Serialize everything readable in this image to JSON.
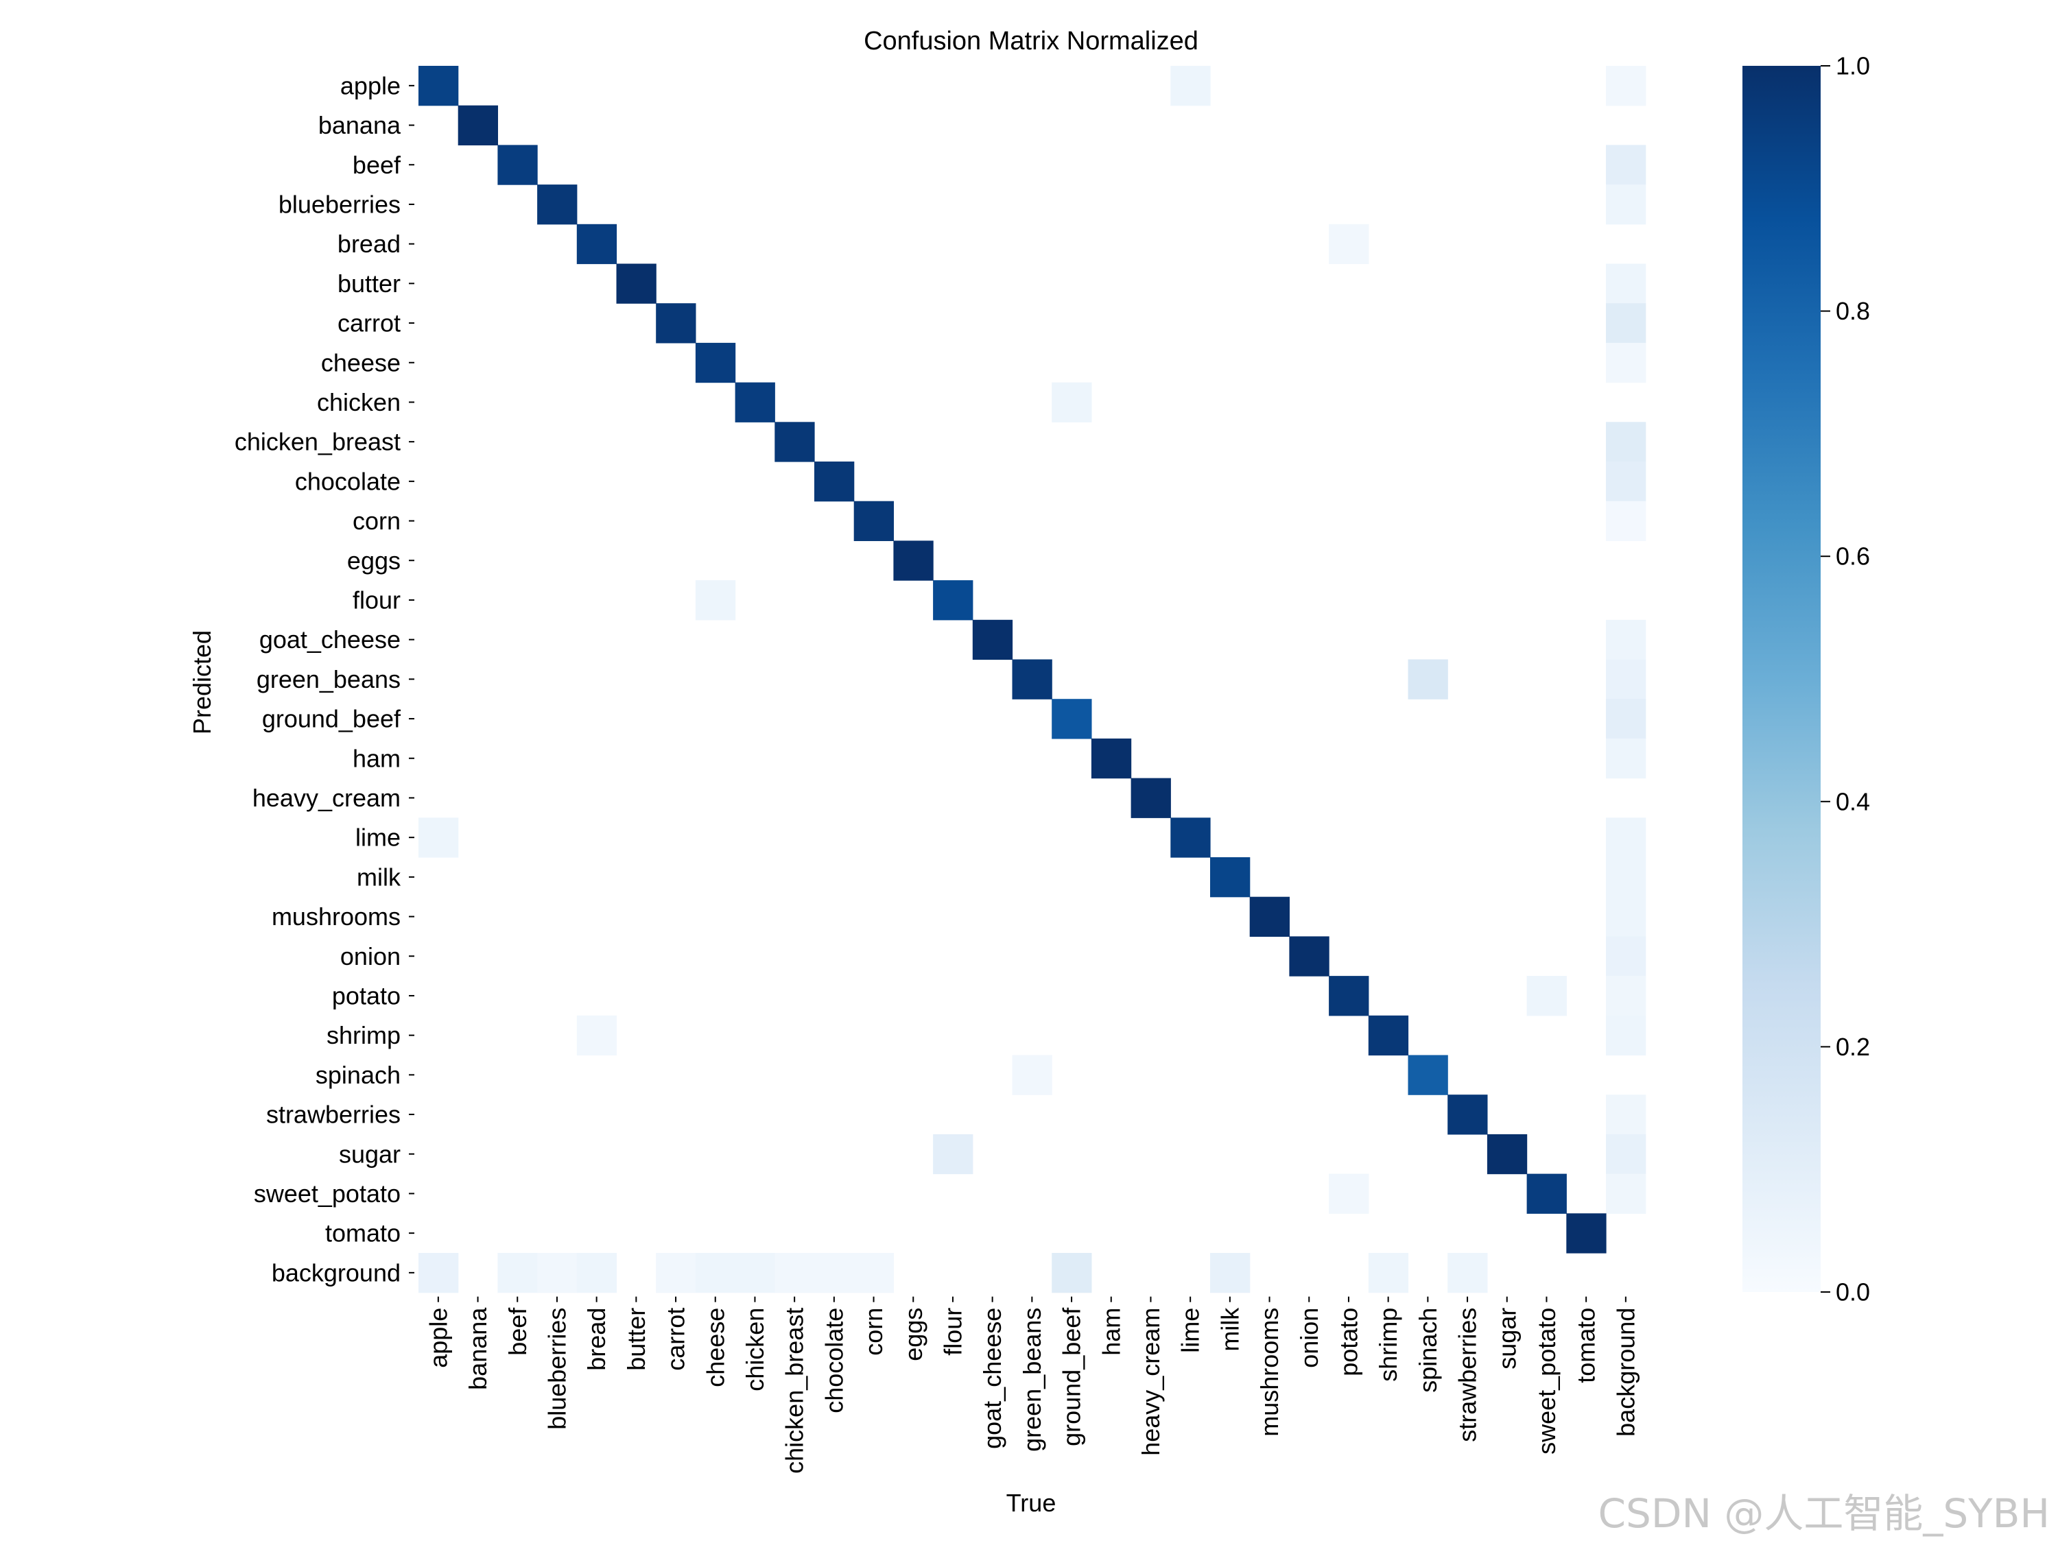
{
  "watermark": "CSDN @人工智能_SYBH",
  "chart_data": {
    "type": "heatmap",
    "title": "Confusion Matrix Normalized",
    "xlabel": "True",
    "ylabel": "Predicted",
    "row_labels": [
      "apple",
      "banana",
      "beef",
      "blueberries",
      "bread",
      "butter",
      "carrot",
      "cheese",
      "chicken",
      "chicken_breast",
      "chocolate",
      "corn",
      "eggs",
      "flour",
      "goat_cheese",
      "green_beans",
      "ground_beef",
      "ham",
      "heavy_cream",
      "lime",
      "milk",
      "mushrooms",
      "onion",
      "potato",
      "shrimp",
      "spinach",
      "strawberries",
      "sugar",
      "sweet_potato",
      "tomato",
      "background"
    ],
    "col_labels": [
      "apple",
      "banana",
      "beef",
      "blueberries",
      "bread",
      "butter",
      "carrot",
      "cheese",
      "chicken",
      "chicken_breast",
      "chocolate",
      "corn",
      "eggs",
      "flour",
      "goat_cheese",
      "green_beans",
      "ground_beef",
      "ham",
      "heavy_cream",
      "lime",
      "milk",
      "mushrooms",
      "onion",
      "potato",
      "shrimp",
      "spinach",
      "strawberries",
      "sugar",
      "sweet_potato",
      "tomato",
      "background"
    ],
    "diagonal": [
      0.93,
      1.0,
      0.95,
      0.97,
      0.95,
      1.0,
      0.97,
      0.95,
      0.95,
      0.97,
      0.97,
      0.97,
      1.0,
      0.9,
      1.0,
      0.97,
      0.85,
      1.0,
      1.0,
      0.95,
      0.92,
      1.0,
      1.0,
      0.97,
      0.97,
      0.82,
      0.97,
      1.0,
      0.95,
      1.0
    ],
    "off_diagonal": [
      {
        "row": "apple",
        "col": "lime",
        "value": 0.05
      },
      {
        "row": "bread",
        "col": "potato",
        "value": 0.03
      },
      {
        "row": "chicken",
        "col": "ground_beef",
        "value": 0.05
      },
      {
        "row": "flour",
        "col": "cheese",
        "value": 0.05
      },
      {
        "row": "green_beans",
        "col": "spinach",
        "value": 0.15
      },
      {
        "row": "lime",
        "col": "apple",
        "value": 0.05
      },
      {
        "row": "potato",
        "col": "sweet_potato",
        "value": 0.05
      },
      {
        "row": "shrimp",
        "col": "bread",
        "value": 0.03
      },
      {
        "row": "spinach",
        "col": "green_beans",
        "value": 0.03
      },
      {
        "row": "sugar",
        "col": "flour",
        "value": 0.1
      },
      {
        "row": "sweet_potato",
        "col": "potato",
        "value": 0.03
      },
      {
        "row": "background",
        "col": "apple",
        "value": 0.07
      },
      {
        "row": "background",
        "col": "beef",
        "value": 0.05
      },
      {
        "row": "background",
        "col": "blueberries",
        "value": 0.03
      },
      {
        "row": "background",
        "col": "bread",
        "value": 0.05
      },
      {
        "row": "background",
        "col": "carrot",
        "value": 0.03
      },
      {
        "row": "background",
        "col": "cheese",
        "value": 0.05
      },
      {
        "row": "background",
        "col": "chicken",
        "value": 0.05
      },
      {
        "row": "background",
        "col": "chicken_breast",
        "value": 0.03
      },
      {
        "row": "background",
        "col": "chocolate",
        "value": 0.03
      },
      {
        "row": "background",
        "col": "corn",
        "value": 0.03
      },
      {
        "row": "background",
        "col": "ground_beef",
        "value": 0.12
      },
      {
        "row": "background",
        "col": "milk",
        "value": 0.08
      },
      {
        "row": "background",
        "col": "shrimp",
        "value": 0.05
      },
      {
        "row": "background",
        "col": "strawberries",
        "value": 0.05
      }
    ],
    "background_column": [
      0.03,
      0,
      0.1,
      0.05,
      0,
      0.05,
      0.12,
      0.03,
      0,
      0.12,
      0.1,
      0.02,
      0,
      0,
      0.05,
      0.07,
      0.1,
      0.05,
      0,
      0.05,
      0.05,
      0.05,
      0.07,
      0.04,
      0.05,
      0,
      0.04,
      0.08,
      0.04,
      0,
      0
    ],
    "colorbar": {
      "cmap": "Blues",
      "vmin": 0.0,
      "vmax": 1.0,
      "ticks": [
        0.0,
        0.2,
        0.4,
        0.6,
        0.8,
        1.0
      ],
      "tick_labels": [
        "0.0",
        "0.2",
        "0.4",
        "0.6",
        "0.8",
        "1.0"
      ]
    },
    "colors": {
      "blues": [
        "#f7fbff",
        "#deebf7",
        "#c6dbef",
        "#9ecae1",
        "#6baed6",
        "#4292c6",
        "#2171b5",
        "#08519c",
        "#08306b"
      ]
    }
  }
}
